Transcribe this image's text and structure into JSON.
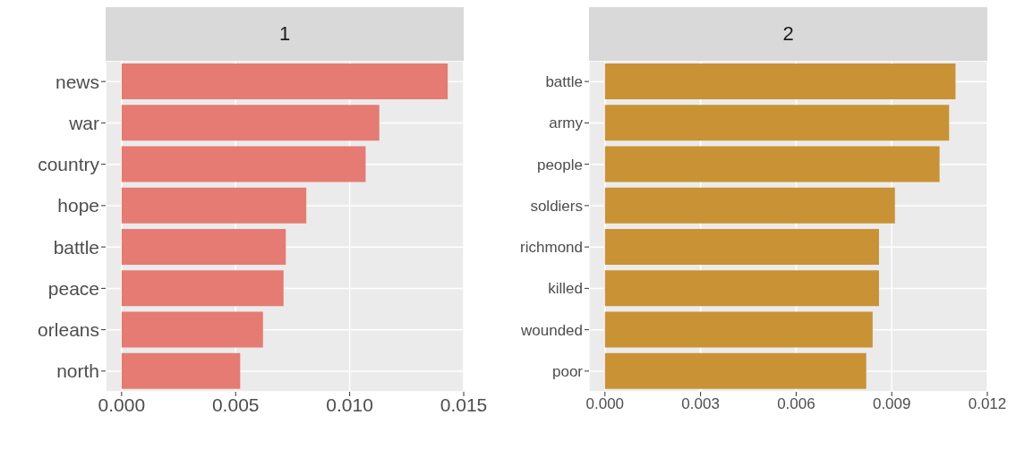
{
  "chart_data": [
    {
      "type": "bar",
      "orientation": "horizontal",
      "title": "1",
      "categories": [
        "news",
        "war",
        "country",
        "hope",
        "battle",
        "peace",
        "orleans",
        "north"
      ],
      "values": [
        0.0143,
        0.0113,
        0.0107,
        0.0081,
        0.0072,
        0.0071,
        0.0062,
        0.0052
      ],
      "color": "#e57b72",
      "xlim": [
        -0.0007,
        0.015
      ],
      "xticks": [
        {
          "value": 0,
          "label": "0.000"
        },
        {
          "value": 0.005,
          "label": "0.005"
        },
        {
          "value": 0.01,
          "label": "0.010"
        },
        {
          "value": 0.015,
          "label": "0.015"
        }
      ],
      "grid": true
    },
    {
      "type": "bar",
      "orientation": "horizontal",
      "title": "2",
      "categories": [
        "battle",
        "army",
        "people",
        "soldiers",
        "richmond",
        "killed",
        "wounded",
        "poor"
      ],
      "values": [
        0.011,
        0.0108,
        0.0105,
        0.0091,
        0.0086,
        0.0086,
        0.0084,
        0.0082
      ],
      "color": "#c99234",
      "xlim": [
        -0.0005,
        0.012
      ],
      "xticks": [
        {
          "value": 0,
          "label": "0.000"
        },
        {
          "value": 0.003,
          "label": "0.003"
        },
        {
          "value": 0.006,
          "label": "0.006"
        },
        {
          "value": 0.009,
          "label": "0.009"
        },
        {
          "value": 0.012,
          "label": "0.012"
        }
      ],
      "grid": true
    }
  ]
}
